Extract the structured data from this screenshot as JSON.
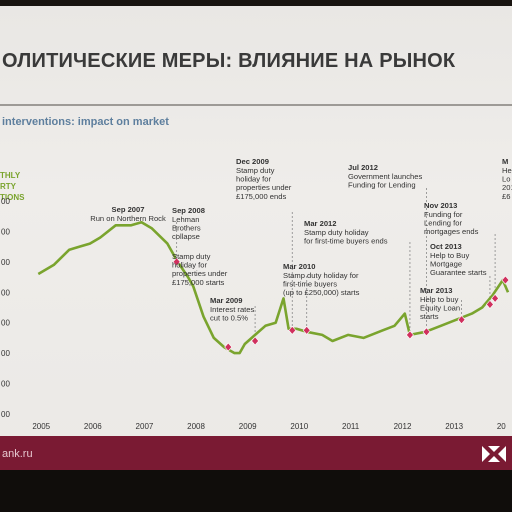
{
  "slide": {
    "title": "ОЛИТИЧЕСКИЕ МЕРЫ: ВЛИЯНИЕ НА РЫНОК",
    "subtitle": "interventions: impact on market",
    "footer": "ank.ru",
    "brand_color": "#7a1a33",
    "line_color": "#7aa42e",
    "marker_color": "#d0305e"
  },
  "chart_data": {
    "type": "line",
    "title": "",
    "ylabel": "THLY\nRTY\nTIONS",
    "xlabel": "",
    "x_ticks": [
      "2005",
      "2006",
      "2007",
      "2008",
      "2009",
      "2010",
      "2011",
      "2012",
      "2013",
      "20"
    ],
    "y_ticks": [
      "00",
      "00",
      "00",
      "00",
      "00",
      "00",
      "00",
      "00"
    ],
    "x_range": [
      2004.8,
      2014.1
    ],
    "y_range": [
      0,
      7
    ],
    "grid": false,
    "series": [
      {
        "points": [
          [
            2005.0,
            4.6
          ],
          [
            2005.3,
            4.9
          ],
          [
            2005.6,
            5.4
          ],
          [
            2005.8,
            5.5
          ],
          [
            2006.0,
            5.6
          ],
          [
            2006.2,
            5.8
          ],
          [
            2006.5,
            6.2
          ],
          [
            2006.8,
            6.2
          ],
          [
            2007.0,
            6.3
          ],
          [
            2007.2,
            6.1
          ],
          [
            2007.5,
            5.6
          ],
          [
            2007.7,
            5.0
          ],
          [
            2007.9,
            4.5
          ],
          [
            2008.0,
            4.2
          ],
          [
            2008.2,
            3.2
          ],
          [
            2008.4,
            2.5
          ],
          [
            2008.6,
            2.2
          ],
          [
            2008.8,
            2.0
          ],
          [
            2008.9,
            2.0
          ],
          [
            2009.0,
            2.3
          ],
          [
            2009.2,
            2.6
          ],
          [
            2009.4,
            2.9
          ],
          [
            2009.6,
            3.0
          ],
          [
            2009.75,
            3.8
          ],
          [
            2009.85,
            2.8
          ],
          [
            2010.0,
            2.8
          ],
          [
            2010.2,
            2.7
          ],
          [
            2010.5,
            2.6
          ],
          [
            2010.7,
            2.4
          ],
          [
            2011.0,
            2.6
          ],
          [
            2011.3,
            2.5
          ],
          [
            2011.6,
            2.7
          ],
          [
            2011.9,
            2.9
          ],
          [
            2012.1,
            3.3
          ],
          [
            2012.2,
            2.6
          ],
          [
            2012.5,
            2.7
          ],
          [
            2012.8,
            2.9
          ],
          [
            2013.1,
            3.1
          ],
          [
            2013.4,
            3.3
          ],
          [
            2013.6,
            3.5
          ],
          [
            2013.8,
            3.9
          ],
          [
            2014.0,
            4.4
          ],
          [
            2014.1,
            4.0
          ]
        ]
      }
    ],
    "annotations": [
      {
        "date": "Sep 2007",
        "text": "Run on Northern Rock",
        "x": 2007.68,
        "y": 5.0
      },
      {
        "date": "Sep 2008",
        "text": "Lehman\nBrothers\ncollapse",
        "x": 2008.68,
        "y": 2.2
      },
      {
        "date": "",
        "text": "Stamp duty\nholiday for\nproperties under\n£175,000 starts",
        "x": 2008.68,
        "y": 2.2
      },
      {
        "date": "Mar 2009",
        "text": "Interest rates\ncut to 0.5%",
        "x": 2009.2,
        "y": 2.4
      },
      {
        "date": "Dec 2009",
        "text": "Stamp duty\nholiday for\nproperties under\n£175,000 ends",
        "x": 2009.92,
        "y": 2.75
      },
      {
        "date": "Mar 2010",
        "text": "Stamp duty holiday for\nfirst-time buyers\n(up to £250,000) starts",
        "x": 2010.2,
        "y": 2.75
      },
      {
        "date": "Mar 2012",
        "text": "Stamp duty holiday\nfor first-time buyers ends",
        "x": 2012.2,
        "y": 2.6
      },
      {
        "date": "Jul 2012",
        "text": "Government launches\nFunding for Lending",
        "x": 2012.52,
        "y": 2.7
      },
      {
        "date": "Mar 2013",
        "text": "Help to buy\nEquity Loan\nstarts",
        "x": 2013.2,
        "y": 3.1
      },
      {
        "date": "Oct 2013",
        "text": "Help to Buy\nMortgage\nGuarantee starts",
        "x": 2013.75,
        "y": 3.6
      },
      {
        "date": "Nov 2013",
        "text": "Funding for\nLending for\nmortgages ends",
        "x": 2013.85,
        "y": 3.8
      },
      {
        "date": "M",
        "text": "He\nLo\n201\n£6",
        "x": 2014.05,
        "y": 4.4
      }
    ]
  }
}
